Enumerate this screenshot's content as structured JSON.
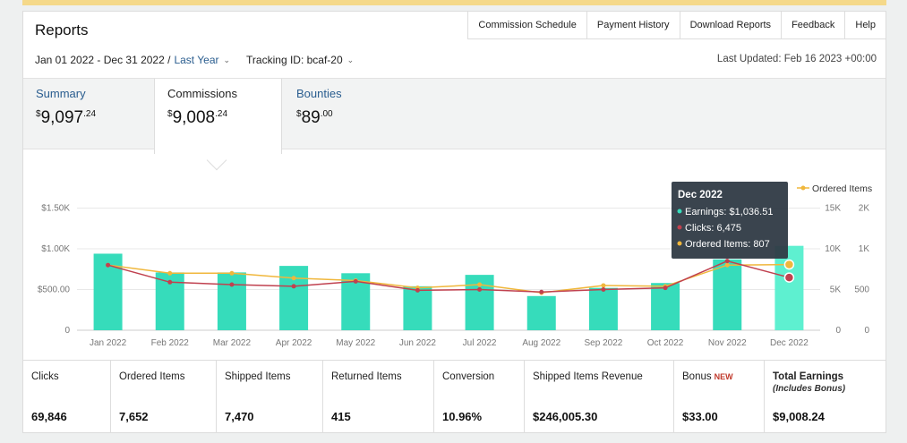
{
  "header": {
    "title": "Reports"
  },
  "topnav": [
    "Commission Schedule",
    "Payment History",
    "Download Reports",
    "Feedback",
    "Help"
  ],
  "filters": {
    "date_range": "Jan 01 2022 - Dec 31 2022 /",
    "period": "Last Year",
    "tracking_label": "Tracking ID: bcaf-20",
    "last_updated": "Last Updated: Feb 16 2023 +00:00"
  },
  "tabs": [
    {
      "label": "Summary",
      "dollars": "9,097",
      "cents": "24"
    },
    {
      "label": "Commissions",
      "dollars": "9,008",
      "cents": "24"
    },
    {
      "label": "Bounties",
      "dollars": "89",
      "cents": "00"
    }
  ],
  "tooltip": {
    "title": "Dec 2022",
    "earnings": "Earnings: $1,036.51",
    "clicks": "Clicks: 6,475",
    "ordered": "Ordered Items: 807"
  },
  "legend": {
    "ordered": "Ordered Items"
  },
  "colors": {
    "bar": "#36dcbb",
    "clicks": "#c0414f",
    "ordered": "#f0b73c",
    "link": "#2a5d8f"
  },
  "chart_data": {
    "type": "bar",
    "categories": [
      "Jan 2022",
      "Feb 2022",
      "Mar 2022",
      "Apr 2022",
      "May 2022",
      "Jun 2022",
      "Jul 2022",
      "Aug 2022",
      "Sep 2022",
      "Oct 2022",
      "Nov 2022",
      "Dec 2022"
    ],
    "y_left_ticks": [
      "0",
      "$500.00",
      "$1.00K",
      "$1.50K"
    ],
    "y_right_clicks_ticks": [
      "0",
      "5K",
      "10K",
      "15K"
    ],
    "y_right_ordered_ticks": [
      "0",
      "500",
      "1K",
      "2K"
    ],
    "ylim_left": [
      0,
      1500
    ],
    "series": [
      {
        "name": "Earnings",
        "axis": "left",
        "values": [
          940,
          710,
          710,
          790,
          700,
          540,
          680,
          420,
          520,
          580,
          870,
          1036.51
        ]
      },
      {
        "name": "Clicks",
        "axis": "clicks",
        "values": [
          8000,
          5900,
          5600,
          5400,
          6000,
          4900,
          5000,
          4700,
          5000,
          5200,
          8500,
          6475
        ]
      },
      {
        "name": "Ordered Items",
        "axis": "ordered",
        "values": [
          800,
          700,
          700,
          640,
          610,
          520,
          560,
          460,
          550,
          540,
          800,
          807
        ]
      }
    ]
  },
  "stats": [
    {
      "label": "Clicks",
      "value": "69,846"
    },
    {
      "label": "Ordered Items",
      "value": "7,652"
    },
    {
      "label": "Shipped Items",
      "value": "7,470"
    },
    {
      "label": "Returned Items",
      "value": "415"
    },
    {
      "label": "Conversion",
      "value": "10.96%"
    },
    {
      "label": "Shipped Items Revenue",
      "value": "$246,005.30"
    },
    {
      "label": "Bonus",
      "badge": "NEW",
      "value": "$33.00"
    },
    {
      "label": "Total Earnings",
      "sub": "(Includes Bonus)",
      "value": "$9,008.24"
    }
  ]
}
